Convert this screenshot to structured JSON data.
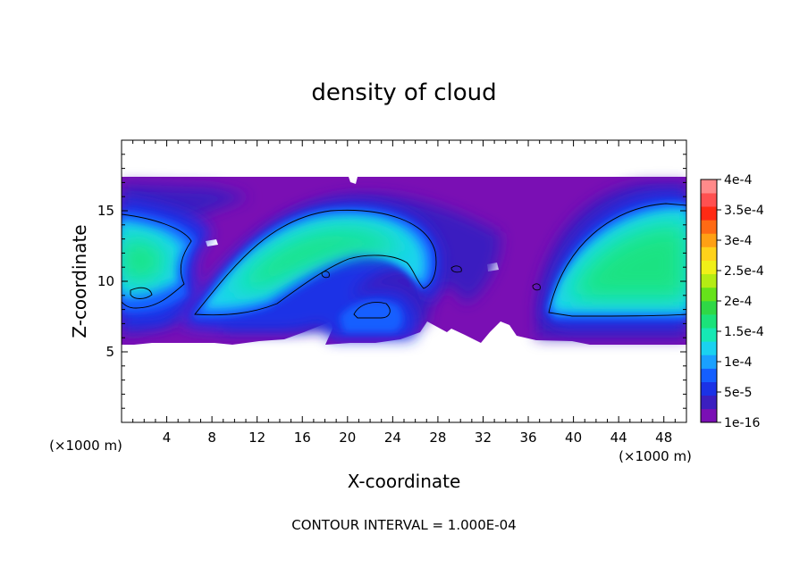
{
  "chart_data": {
    "type": "heatmap",
    "title": "density of cloud",
    "xlabel": "X-coordinate",
    "ylabel": "Z-coordinate",
    "x_unit_label_left": "(×1000 m)",
    "x_unit_label_right": "(×1000 m)",
    "footer": "CONTOUR INTERVAL = 1.000E-04",
    "xlim": [
      0,
      50
    ],
    "ylim": [
      0,
      20
    ],
    "x_ticks": [
      4,
      8,
      12,
      16,
      20,
      24,
      28,
      32,
      36,
      40,
      44,
      48
    ],
    "y_ticks": [
      5,
      10,
      15
    ],
    "colorbar": {
      "labels": [
        "1e-16",
        "5e-5",
        "1e-4",
        "1.5e-4",
        "2e-4",
        "2.5e-4",
        "3e-4",
        "3.5e-4",
        "4e-4"
      ],
      "bands": [
        "#7a0fb4",
        "#3b1fc0",
        "#1b32e6",
        "#145fff",
        "#1aa0ff",
        "#1ad2f0",
        "#16e8b4",
        "#1be27a",
        "#2fd846",
        "#66e21a",
        "#b4ec14",
        "#f0f018",
        "#ffd21a",
        "#ffa014",
        "#ff6a14",
        "#ff2a14",
        "#ff5050",
        "#ff8a8a"
      ]
    },
    "cloud_layer": {
      "z_bottom": 5.5,
      "z_top": 17.2
    },
    "cores": [
      {
        "name": "left",
        "x_range": [
          0,
          6
        ],
        "z_range": [
          9.5,
          14
        ],
        "peak": 0.00018
      },
      {
        "name": "arch",
        "x_range": [
          7,
          27
        ],
        "z_range": [
          7.8,
          15
        ],
        "peak": 0.00018
      },
      {
        "name": "right",
        "x_range": [
          38,
          50
        ],
        "z_range": [
          7.7,
          15.3
        ],
        "peak": 0.00018
      }
    ]
  }
}
